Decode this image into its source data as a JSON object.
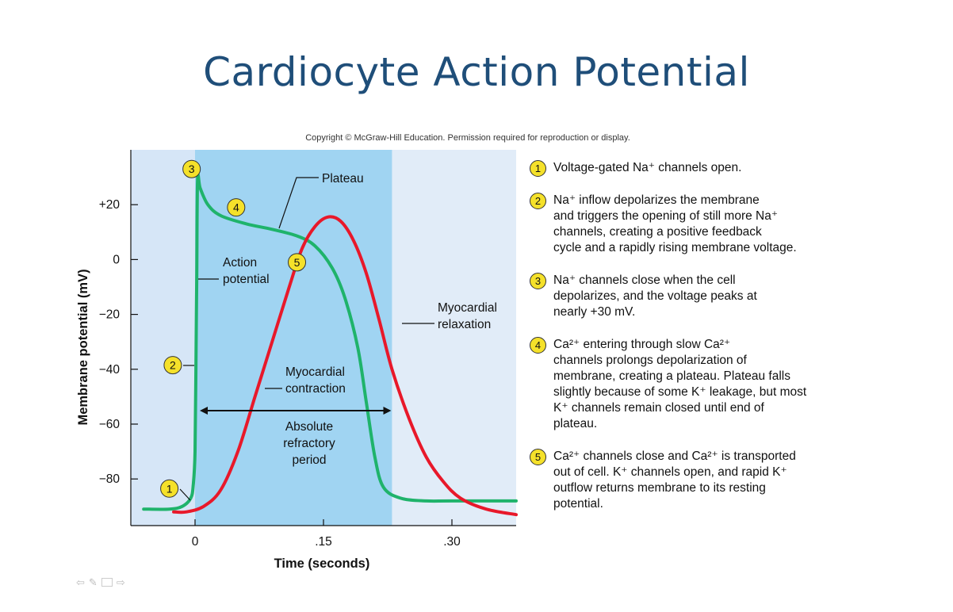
{
  "slide": {
    "title": "Cardiocyte Action Potential",
    "copyright": "Copyright © McGraw-Hill Education. Permission required for reproduction or display."
  },
  "chart_data": {
    "type": "line",
    "xlabel": "Time (seconds)",
    "ylabel": "Membrane potential (mV)",
    "xlim": [
      -0.075,
      0.375
    ],
    "ylim": [
      -97,
      40
    ],
    "x_ticks": [
      {
        "value": 0,
        "label": "0"
      },
      {
        "value": 0.15,
        "label": ".15"
      },
      {
        "value": 0.3,
        "label": ".30"
      }
    ],
    "y_ticks": [
      {
        "value": 20,
        "label": "+20"
      },
      {
        "value": 0,
        "label": "0"
      },
      {
        "value": -20,
        "label": "−20"
      },
      {
        "value": -40,
        "label": "−40"
      },
      {
        "value": -60,
        "label": "−60"
      },
      {
        "value": -80,
        "label": "−80"
      }
    ],
    "refractory_period": [
      0,
      0.23
    ],
    "series": [
      {
        "role": "action-potential",
        "color": "#1fb36b",
        "points": [
          [
            -0.06,
            -91
          ],
          [
            -0.03,
            -91
          ],
          [
            -0.015,
            -90
          ],
          [
            -0.005,
            -87
          ],
          [
            -0.002,
            -82
          ],
          [
            0,
            -70
          ],
          [
            0.001,
            -40
          ],
          [
            0.002,
            -5
          ],
          [
            0.003,
            29
          ],
          [
            0.006,
            26
          ],
          [
            0.015,
            20
          ],
          [
            0.03,
            16
          ],
          [
            0.06,
            13
          ],
          [
            0.09,
            11
          ],
          [
            0.12,
            8.5
          ],
          [
            0.14,
            5
          ],
          [
            0.16,
            -3
          ],
          [
            0.175,
            -14
          ],
          [
            0.19,
            -32
          ],
          [
            0.2,
            -52
          ],
          [
            0.21,
            -72
          ],
          [
            0.22,
            -83
          ],
          [
            0.24,
            -87
          ],
          [
            0.27,
            -88
          ],
          [
            0.3,
            -88
          ],
          [
            0.375,
            -88
          ]
        ]
      },
      {
        "role": "myocardial-contraction",
        "color": "#e8182a",
        "points": [
          [
            -0.025,
            -92
          ],
          [
            -0.01,
            -92
          ],
          [
            0.01,
            -90
          ],
          [
            0.03,
            -84
          ],
          [
            0.05,
            -70
          ],
          [
            0.07,
            -50
          ],
          [
            0.09,
            -30
          ],
          [
            0.11,
            -10
          ],
          [
            0.125,
            4
          ],
          [
            0.14,
            12
          ],
          [
            0.155,
            15.5
          ],
          [
            0.17,
            14
          ],
          [
            0.185,
            7
          ],
          [
            0.2,
            -5
          ],
          [
            0.215,
            -22
          ],
          [
            0.23,
            -40
          ],
          [
            0.25,
            -58
          ],
          [
            0.27,
            -72
          ],
          [
            0.29,
            -81
          ],
          [
            0.31,
            -87
          ],
          [
            0.34,
            -91
          ],
          [
            0.375,
            -93
          ]
        ]
      }
    ],
    "annotations": {
      "plateau": "Plateau",
      "action_potential_line1": "Action",
      "action_potential_line2": "potential",
      "myocardial_relaxation_line1": "Myocardial",
      "myocardial_relaxation_line2": "relaxation",
      "myocardial_contraction_line1": "Myocardial",
      "myocardial_contraction_line2": "contraction",
      "absolute_refractory_line1": "Absolute",
      "absolute_refractory_line2": "refractory",
      "absolute_refractory_line3": "period"
    },
    "markers": [
      {
        "label": "1",
        "x": -0.03,
        "y": -83.5
      },
      {
        "label": "2",
        "x": -0.026,
        "y": -38.5
      },
      {
        "label": "3",
        "x": -0.004,
        "y": 33
      },
      {
        "label": "4",
        "x": 0.048,
        "y": 19
      },
      {
        "label": "5",
        "x": 0.119,
        "y": -1
      }
    ],
    "colors": {
      "outer_bg": "#d6e6f7",
      "refractory_bg": "#a0d4f2",
      "outer_right_bg": "#e1ecf8",
      "marker_fill": "#f5e12a"
    }
  },
  "steps": [
    {
      "num": "1",
      "lines": [
        "Voltage-gated Na⁺ channels open."
      ]
    },
    {
      "num": "2",
      "lines": [
        "Na⁺ inflow depolarizes the membrane",
        "and triggers the opening of still more Na⁺",
        "channels, creating a positive feedback",
        "cycle and a rapidly rising membrane voltage."
      ]
    },
    {
      "num": "3",
      "lines": [
        "Na⁺ channels close when the cell",
        "depolarizes, and the voltage peaks at",
        "nearly +30 mV."
      ]
    },
    {
      "num": "4",
      "lines": [
        "Ca²⁺ entering through slow Ca²⁺",
        "channels prolongs depolarization of",
        "membrane, creating a plateau. Plateau falls",
        "slightly because of some K⁺ leakage, but most",
        "K⁺ channels remain closed until end of",
        "plateau."
      ]
    },
    {
      "num": "5",
      "lines": [
        "Ca²⁺ channels close and Ca²⁺ is transported",
        "out of cell. K⁺ channels open, and rapid K⁺",
        "outflow returns membrane to its resting",
        "potential."
      ]
    }
  ],
  "nav": {
    "icons": [
      "back-arrow-icon",
      "pen-icon",
      "menu-icon",
      "forward-arrow-icon"
    ],
    "glyphs": [
      "⇦",
      "✎",
      "",
      "⇨"
    ]
  }
}
